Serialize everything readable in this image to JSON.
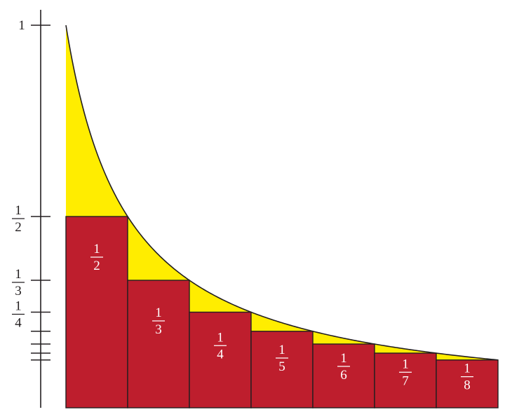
{
  "chart_data": {
    "type": "bar",
    "curve": "y = 1/x",
    "x_range": [
      1,
      8
    ],
    "y_range": [
      0,
      1
    ],
    "bars": [
      {
        "x_start": 1,
        "x_end": 2,
        "height": 0.5,
        "label": {
          "num": "1",
          "den": "2"
        }
      },
      {
        "x_start": 2,
        "x_end": 3,
        "height": 0.3333,
        "label": {
          "num": "1",
          "den": "3"
        }
      },
      {
        "x_start": 3,
        "x_end": 4,
        "height": 0.25,
        "label": {
          "num": "1",
          "den": "4"
        }
      },
      {
        "x_start": 4,
        "x_end": 5,
        "height": 0.2,
        "label": {
          "num": "1",
          "den": "5"
        }
      },
      {
        "x_start": 5,
        "x_end": 6,
        "height": 0.1667,
        "label": {
          "num": "1",
          "den": "6"
        }
      },
      {
        "x_start": 6,
        "x_end": 7,
        "height": 0.1429,
        "label": {
          "num": "1",
          "den": "7"
        }
      },
      {
        "x_start": 7,
        "x_end": 8,
        "height": 0.125,
        "label": {
          "num": "1",
          "den": "8"
        }
      }
    ],
    "y_ticks": [
      {
        "value": 1,
        "label": "1"
      },
      {
        "value": 0.5,
        "label": {
          "num": "1",
          "den": "2"
        }
      },
      {
        "value": 0.3333,
        "label": {
          "num": "1",
          "den": "3"
        }
      },
      {
        "value": 0.25,
        "label": {
          "num": "1",
          "den": "4"
        }
      },
      {
        "value": 0.2,
        "label": null
      },
      {
        "value": 0.1667,
        "label": null
      },
      {
        "value": 0.1429,
        "label": null
      },
      {
        "value": 0.125,
        "label": null
      }
    ],
    "colors": {
      "bar_fill": "#be1e2d",
      "area_fill": "#ffed00",
      "outline": "#231f20",
      "bar_text": "#ffffff",
      "axis_text": "#231f20"
    }
  }
}
